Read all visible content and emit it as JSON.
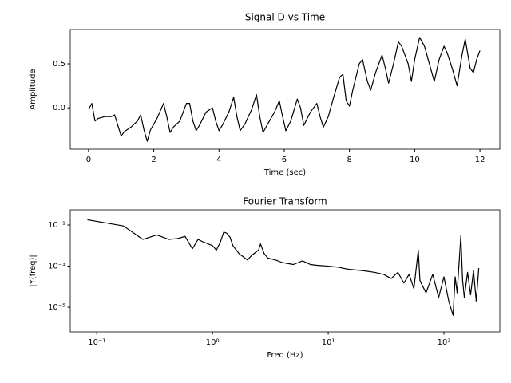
{
  "chart_data": [
    {
      "type": "line",
      "title": "Signal D vs Time",
      "x_label": "Time (sec)",
      "y_label": "Amplitude",
      "xlim": [
        -0.56,
        12.61
      ],
      "ylim": [
        -0.47,
        0.89
      ],
      "xticks": [
        0,
        2,
        4,
        6,
        8,
        10,
        12
      ],
      "yticks": [
        {
          "value": 0.0,
          "label": "0.0"
        },
        {
          "value": 0.5,
          "label": "0.5"
        }
      ],
      "series": [
        {
          "color": "#000000",
          "x": [
            0,
            0.1,
            0.2,
            0.3,
            0.5,
            0.7,
            0.8,
            0.9,
            1.0,
            1.1,
            1.3,
            1.5,
            1.6,
            1.7,
            1.8,
            1.9,
            2.1,
            2.3,
            2.4,
            2.5,
            2.6,
            2.8,
            3.0,
            3.1,
            3.2,
            3.3,
            3.4,
            3.6,
            3.8,
            3.9,
            4.0,
            4.1,
            4.3,
            4.45,
            4.55,
            4.65,
            4.8,
            5.0,
            5.15,
            5.25,
            5.35,
            5.5,
            5.7,
            5.85,
            5.95,
            6.05,
            6.2,
            6.4,
            6.5,
            6.6,
            6.8,
            7.0,
            7.1,
            7.2,
            7.35,
            7.5,
            7.7,
            7.8,
            7.9,
            8.0,
            8.1,
            8.3,
            8.4,
            8.55,
            8.65,
            8.8,
            9.0,
            9.1,
            9.2,
            9.35,
            9.5,
            9.6,
            9.8,
            9.9,
            10.0,
            10.15,
            10.3,
            10.45,
            10.6,
            10.75,
            10.9,
            11.0,
            11.15,
            11.3,
            11.45,
            11.55,
            11.7,
            11.8,
            11.9,
            12.0
          ],
          "values": [
            -0.02,
            0.05,
            -0.15,
            -0.12,
            -0.1,
            -0.1,
            -0.08,
            -0.2,
            -0.32,
            -0.27,
            -0.22,
            -0.15,
            -0.08,
            -0.25,
            -0.38,
            -0.25,
            -0.12,
            0.05,
            -0.1,
            -0.28,
            -0.22,
            -0.15,
            0.05,
            0.05,
            -0.15,
            -0.26,
            -0.2,
            -0.05,
            0.0,
            -0.15,
            -0.26,
            -0.2,
            -0.05,
            0.12,
            -0.1,
            -0.26,
            -0.18,
            -0.02,
            0.15,
            -0.1,
            -0.28,
            -0.18,
            -0.05,
            0.08,
            -0.1,
            -0.26,
            -0.15,
            0.1,
            0.0,
            -0.2,
            -0.05,
            0.05,
            -0.1,
            -0.22,
            -0.1,
            0.1,
            0.35,
            0.38,
            0.08,
            0.02,
            0.2,
            0.5,
            0.55,
            0.3,
            0.2,
            0.4,
            0.6,
            0.45,
            0.28,
            0.5,
            0.75,
            0.7,
            0.5,
            0.3,
            0.55,
            0.8,
            0.7,
            0.5,
            0.3,
            0.55,
            0.7,
            0.62,
            0.45,
            0.25,
            0.6,
            0.78,
            0.45,
            0.4,
            0.55,
            0.65
          ]
        }
      ]
    },
    {
      "type": "line",
      "title": "Fourier Transform",
      "x_label": "Freq (Hz)",
      "y_label": "|Y(freq)|",
      "log_x": true,
      "log_y": true,
      "xlim": [
        0.059,
        304
      ],
      "ylim": [
        6.3e-07,
        0.547
      ],
      "xticks": [
        {
          "value": 0.1,
          "label": "10⁻¹"
        },
        {
          "value": 1,
          "label": "10⁰"
        },
        {
          "value": 10,
          "label": "10¹"
        },
        {
          "value": 100,
          "label": "10²"
        }
      ],
      "yticks": [
        {
          "value": 0.1,
          "label": "10⁻¹"
        },
        {
          "value": 0.001,
          "label": "10⁻³"
        },
        {
          "value": 1e-05,
          "label": "10⁻⁵"
        }
      ],
      "series": [
        {
          "color": "#000000",
          "x": [
            0.083,
            0.17,
            0.25,
            0.33,
            0.42,
            0.5,
            0.58,
            0.67,
            0.75,
            0.83,
            1.0,
            1.08,
            1.17,
            1.25,
            1.33,
            1.42,
            1.5,
            1.7,
            2.0,
            2.2,
            2.5,
            2.6,
            2.8,
            3.0,
            3.5,
            4,
            5,
            6,
            7,
            8,
            10,
            12,
            15,
            20,
            25,
            30,
            35,
            40,
            45,
            50,
            55,
            60,
            62,
            70,
            80,
            90,
            100,
            110,
            120,
            125,
            130,
            140,
            145,
            150,
            160,
            170,
            180,
            190,
            200
          ],
          "values": [
            0.18,
            0.09,
            0.02,
            0.033,
            0.02,
            0.022,
            0.028,
            0.007,
            0.02,
            0.015,
            0.01,
            0.006,
            0.015,
            0.045,
            0.04,
            0.025,
            0.01,
            0.004,
            0.002,
            0.0035,
            0.006,
            0.012,
            0.004,
            0.0025,
            0.002,
            0.0015,
            0.0012,
            0.0018,
            0.0012,
            0.0011,
            0.001,
            0.0009,
            0.0007,
            0.0006,
            0.0005,
            0.0004,
            0.00025,
            0.0005,
            0.00015,
            0.0004,
            8e-05,
            0.006,
            0.0002,
            5e-05,
            0.0004,
            3e-05,
            0.0003,
            2e-05,
            4e-06,
            0.0003,
            5e-05,
            0.03,
            0.0002,
            3e-05,
            0.0005,
            4e-05,
            0.0006,
            2e-05,
            0.0008
          ]
        }
      ]
    }
  ]
}
